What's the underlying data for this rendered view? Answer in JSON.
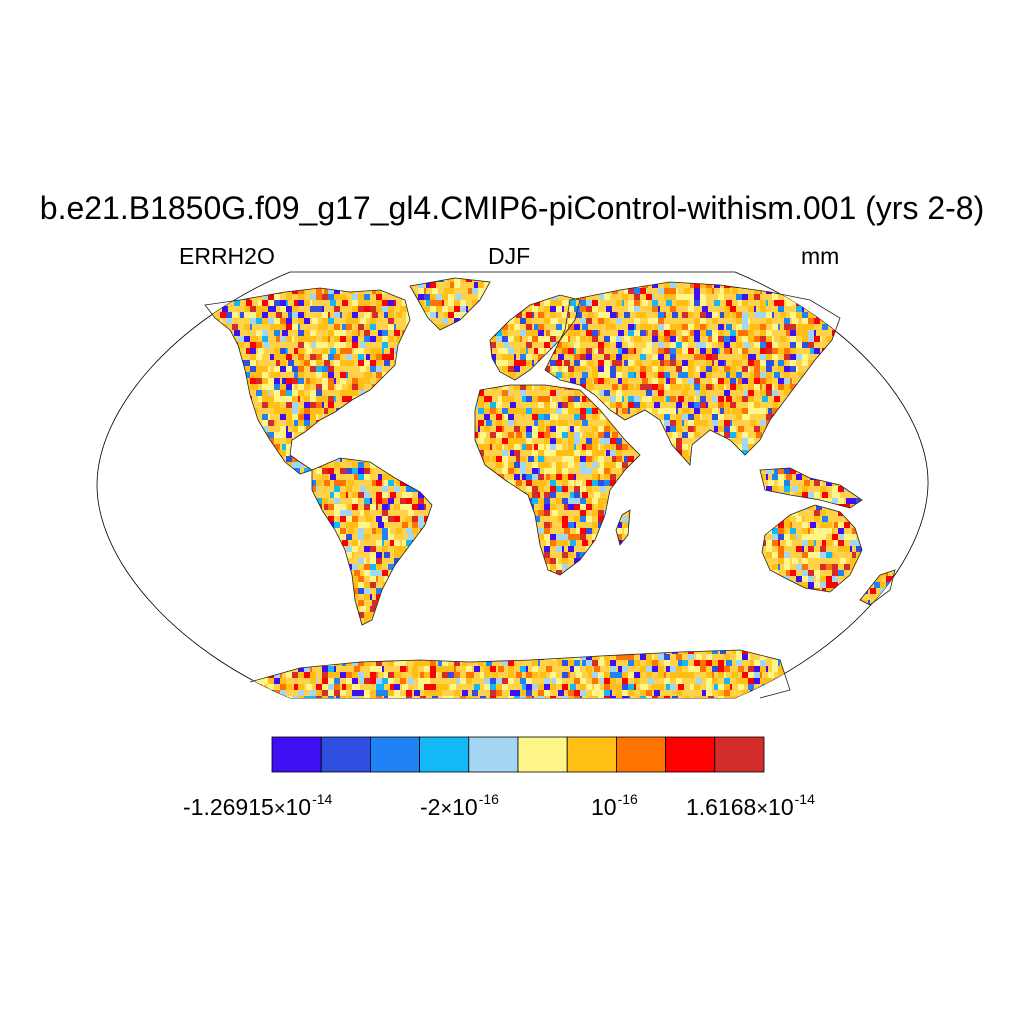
{
  "title": "b.e21.B1850G.f09_g17_gl4.CMIP6-piControl-withism.001 (yrs 2-8)",
  "left_string": "ERRH2O",
  "center_string": "DJF",
  "right_string": "mm",
  "projection": "Robinson",
  "ocean_color": "#ffffff",
  "coastline_color": "#000000",
  "colorbar": {
    "colors": [
      "#4010f5",
      "#2f4fe0",
      "#1f82f5",
      "#12b9f5",
      "#a2d6f2",
      "#fff68a",
      "#ffbf14",
      "#ff7300",
      "#ff0000",
      "#d42b2b"
    ],
    "labels": [
      {
        "mantissa": "-1.26915",
        "exponent": "-14"
      },
      {
        "mantissa": "-2",
        "exponent": "-16"
      },
      {
        "mantissa": "",
        "exponent": "-16"
      },
      {
        "mantissa": "1.6168",
        "exponent": "-14"
      }
    ],
    "times_symbol": "×",
    "base": "10"
  }
}
